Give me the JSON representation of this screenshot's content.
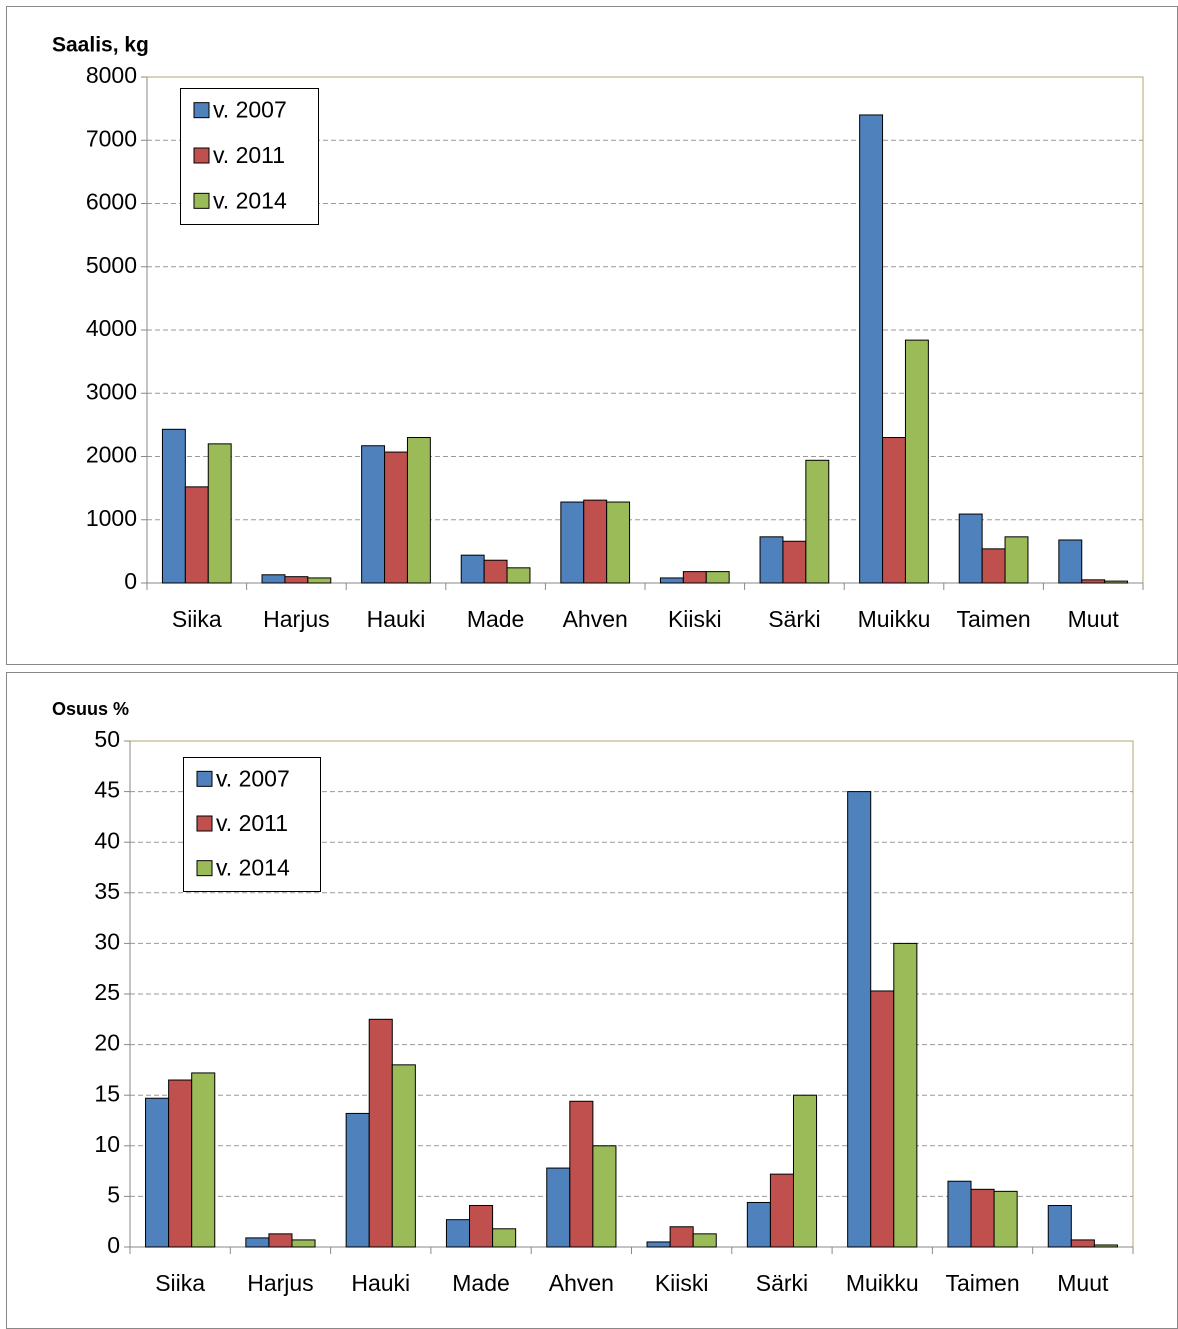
{
  "chart_data": [
    {
      "type": "bar",
      "title": "Saalis, kg",
      "categories": [
        "Siika",
        "Harjus",
        "Hauki",
        "Made",
        "Ahven",
        "Kiiski",
        "Särki",
        "Muikku",
        "Taimen",
        "Muut"
      ],
      "series": [
        {
          "name": "v. 2007",
          "color": "#4f81bd",
          "values": [
            2430,
            130,
            2170,
            440,
            1280,
            80,
            730,
            7400,
            1090,
            680
          ]
        },
        {
          "name": "v. 2011",
          "color": "#c0504d",
          "values": [
            1520,
            100,
            2070,
            360,
            1310,
            180,
            660,
            2300,
            540,
            50
          ]
        },
        {
          "name": "v. 2014",
          "color": "#9bbb59",
          "values": [
            2200,
            80,
            2300,
            240,
            1280,
            180,
            1940,
            3840,
            730,
            30
          ]
        }
      ],
      "ylim": [
        0,
        8000
      ],
      "yticks": [
        0,
        1000,
        2000,
        3000,
        4000,
        5000,
        6000,
        7000,
        8000
      ],
      "grid": true,
      "legend": "upper left"
    },
    {
      "type": "bar",
      "title": "Osuus %",
      "categories": [
        "Siika",
        "Harjus",
        "Hauki",
        "Made",
        "Ahven",
        "Kiiski",
        "Särki",
        "Muikku",
        "Taimen",
        "Muut"
      ],
      "series": [
        {
          "name": "v. 2007",
          "color": "#4f81bd",
          "values": [
            14.7,
            0.9,
            13.2,
            2.7,
            7.8,
            0.5,
            4.4,
            45.0,
            6.5,
            4.1
          ]
        },
        {
          "name": "v. 2011",
          "color": "#c0504d",
          "values": [
            16.5,
            1.3,
            22.5,
            4.1,
            14.4,
            2.0,
            7.2,
            25.3,
            5.7,
            0.7
          ]
        },
        {
          "name": "v. 2014",
          "color": "#9bbb59",
          "values": [
            17.2,
            0.7,
            18.0,
            1.8,
            10.0,
            1.3,
            15.0,
            30.0,
            5.5,
            0.2
          ]
        }
      ],
      "ylim": [
        0,
        50
      ],
      "yticks": [
        0,
        5,
        10,
        15,
        20,
        25,
        30,
        35,
        40,
        45,
        50
      ],
      "grid": true,
      "legend": "upper left"
    }
  ]
}
